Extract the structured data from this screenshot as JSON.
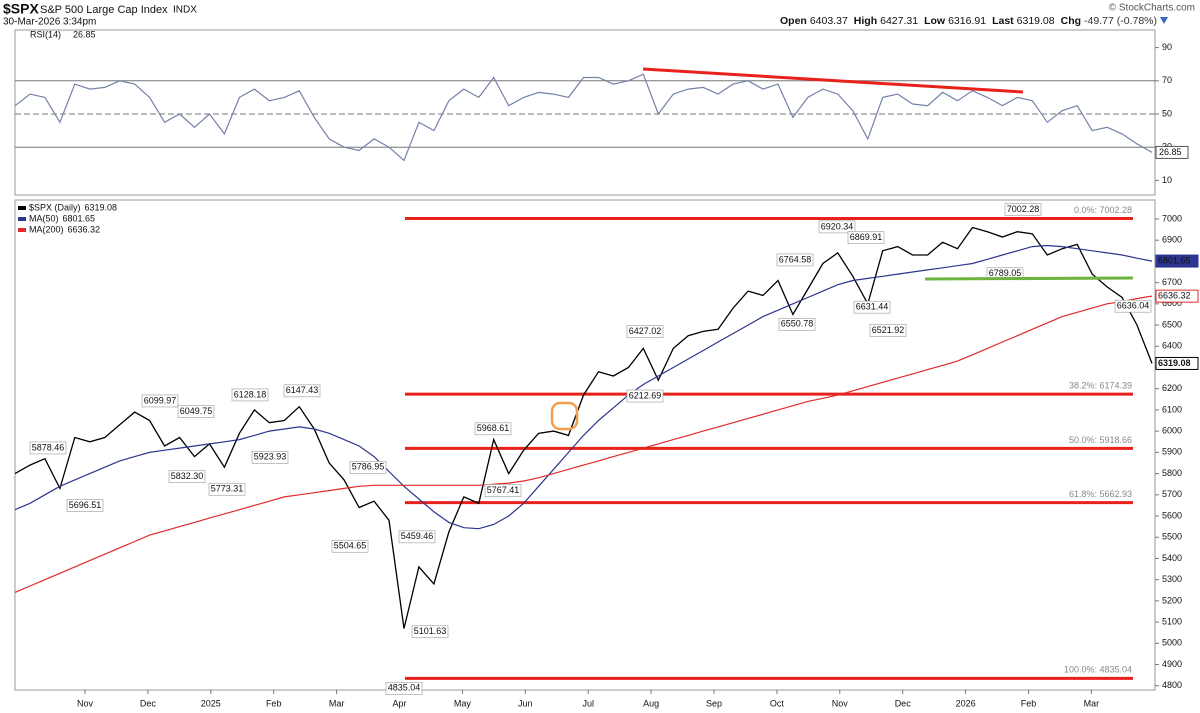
{
  "header": {
    "symbol": "$SPX",
    "name": "S&P 500 Large Cap Index",
    "exchange": "INDX",
    "timestamp": "30-Mar-2026 3:34pm",
    "copyright": "© StockCharts.com",
    "quote": [
      {
        "label": "Open",
        "value": "6403.37"
      },
      {
        "label": "High",
        "value": "6427.31"
      },
      {
        "label": "Low",
        "value": "6316.91"
      },
      {
        "label": "Last",
        "value": "6319.08"
      },
      {
        "label": "Chg",
        "value": "-49.77 (-0.78%)"
      }
    ]
  },
  "chart_data": [
    {
      "type": "line",
      "series": [
        {
          "name": "RSI(14)",
          "color": "#7382a8",
          "values": [
            55,
            62,
            60,
            45,
            68,
            65,
            66,
            70,
            68,
            60,
            45,
            50,
            42,
            50,
            38,
            60,
            65,
            58,
            60,
            64,
            48,
            35,
            30,
            28,
            35,
            30,
            22,
            45,
            40,
            58,
            65,
            60,
            72,
            55,
            60,
            63,
            62,
            60,
            72,
            72,
            68,
            70,
            74,
            50,
            62,
            65,
            66,
            62,
            68,
            70,
            65,
            68,
            48,
            60,
            65,
            62,
            52,
            35,
            60,
            62,
            56,
            55,
            63,
            58,
            64,
            60,
            55,
            60,
            58,
            45,
            52,
            55,
            40,
            42,
            38,
            32,
            26.85
          ]
        }
      ],
      "ylim": [
        0,
        100
      ],
      "yticks": [
        10,
        30,
        50,
        70,
        90
      ],
      "reference_lines": [
        30,
        50,
        70
      ]
    },
    {
      "type": "line",
      "series": [
        {
          "name": "$SPX (Daily)",
          "color": "#000000",
          "values": [
            5800,
            5840,
            5870,
            5730,
            5970,
            5950,
            5970,
            6030,
            6090,
            6050,
            5930,
            5970,
            5880,
            5940,
            5830,
            5990,
            6100,
            6040,
            6050,
            6115,
            6010,
            5850,
            5770,
            5640,
            5670,
            5580,
            5070,
            5360,
            5280,
            5525,
            5690,
            5660,
            5960,
            5800,
            5910,
            5990,
            6000,
            5980,
            6170,
            6280,
            6260,
            6300,
            6390,
            6240,
            6390,
            6450,
            6470,
            6480,
            6580,
            6660,
            6640,
            6710,
            6550,
            6670,
            6790,
            6840,
            6730,
            6600,
            6850,
            6870,
            6830,
            6830,
            6890,
            6860,
            6960,
            6940,
            6915,
            6940,
            6930,
            6830,
            6860,
            6880,
            6740,
            6680,
            6630,
            6500,
            6319.08
          ]
        },
        {
          "name": "MA(50)",
          "color": "#2c3590",
          "values": [
            5630,
            5660,
            5700,
            5740,
            5770,
            5800,
            5830,
            5860,
            5880,
            5900,
            5910,
            5920,
            5930,
            5940,
            5950,
            5960,
            5980,
            6000,
            6010,
            6020,
            6010,
            5990,
            5960,
            5930,
            5880,
            5810,
            5740,
            5680,
            5620,
            5570,
            5545,
            5540,
            5560,
            5600,
            5660,
            5740,
            5820,
            5900,
            5980,
            6050,
            6110,
            6170,
            6220,
            6260,
            6300,
            6340,
            6380,
            6420,
            6460,
            6500,
            6540,
            6570,
            6600,
            6630,
            6660,
            6690,
            6710,
            6720,
            6730,
            6740,
            6750,
            6760,
            6770,
            6780,
            6790,
            6810,
            6830,
            6850,
            6870,
            6875,
            6870,
            6860,
            6850,
            6840,
            6830,
            6815,
            6801.65
          ]
        },
        {
          "name": "MA(200)",
          "color": "#e02a2a",
          "values": [
            5240,
            5270,
            5300,
            5330,
            5360,
            5390,
            5420,
            5450,
            5480,
            5510,
            5530,
            5550,
            5570,
            5590,
            5610,
            5630,
            5650,
            5670,
            5690,
            5700,
            5710,
            5720,
            5730,
            5740,
            5745,
            5745,
            5745,
            5745,
            5745,
            5745,
            5745,
            5745,
            5750,
            5755,
            5765,
            5780,
            5800,
            5820,
            5840,
            5860,
            5880,
            5900,
            5920,
            5940,
            5960,
            5980,
            6000,
            6020,
            6040,
            6060,
            6080,
            6100,
            6120,
            6140,
            6155,
            6170,
            6190,
            6210,
            6230,
            6250,
            6270,
            6290,
            6310,
            6330,
            6360,
            6390,
            6420,
            6450,
            6480,
            6510,
            6540,
            6560,
            6580,
            6600,
            6610,
            6625,
            6636.32
          ]
        }
      ],
      "ylim": [
        4780,
        7080
      ],
      "yticks": [
        4800,
        4900,
        5000,
        5100,
        5200,
        5300,
        5400,
        5500,
        5600,
        5700,
        5800,
        5900,
        6000,
        6100,
        6200,
        6300,
        6400,
        6500,
        6600,
        6700,
        6800,
        6900,
        7000
      ],
      "x_axis_labels": [
        "Nov",
        "Dec",
        "2025",
        "Feb",
        "Mar",
        "Apr",
        "May",
        "Jun",
        "Jul",
        "Aug",
        "Sep",
        "Oct",
        "Nov",
        "Dec",
        "2026",
        "Feb",
        "Mar"
      ],
      "point_labels": [
        6099.97,
        5878.46,
        6049.75,
        6128.18,
        6147.43,
        5696.51,
        5832.3,
        5773.31,
        5923.93,
        5786.95,
        5504.65,
        5459.46,
        5101.63,
        4835.04,
        5968.61,
        5767.41,
        6427.02,
        6212.69,
        6764.58,
        6550.78,
        6920.34,
        6869.91,
        6631.44,
        6521.92,
        7002.28,
        6789.05,
        6636.04
      ],
      "fib_levels": [
        {
          "label": "0.0%: 7002.28",
          "value": 7002.28
        },
        {
          "label": "38.2%: 6174.39",
          "value": 6174.39
        },
        {
          "label": "50.0%: 5918.66",
          "value": 5918.66
        },
        {
          "label": "61.8%: 5662.93",
          "value": 5662.93
        },
        {
          "label": "100.0%: 4835.04",
          "value": 4835.04
        }
      ],
      "legend": "top-left"
    }
  ]
}
